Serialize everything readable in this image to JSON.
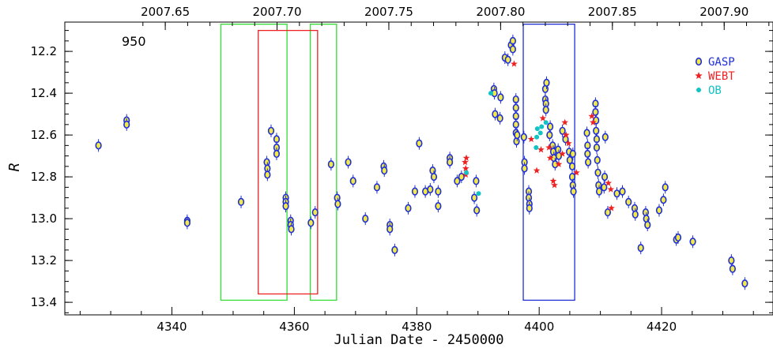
{
  "chart_data": {
    "type": "scatter",
    "annotation": "950",
    "xlabel": "Julian Date - 2450000",
    "ylabel": "R",
    "xlim": [
      4322.5,
      4438.2
    ],
    "ylim": [
      13.46,
      12.06
    ],
    "y_inverted": true,
    "x_ticks": [
      4340,
      4360,
      4380,
      4400,
      4420
    ],
    "x_tick_labels": [
      "4340",
      "4360",
      "4380",
      "4400",
      "4420"
    ],
    "y_ticks": [
      12.2,
      12.4,
      12.6,
      12.8,
      13.0,
      13.2,
      13.4
    ],
    "y_tick_labels": [
      "12.2",
      "12.4",
      "12.6",
      "12.8",
      "13.0",
      "13.2",
      "13.4"
    ],
    "top_axis": {
      "ticks": [
        2007.65,
        2007.7,
        2007.75,
        2007.8,
        2007.85,
        2007.9
      ],
      "tick_labels": [
        "2007.65",
        "2007.70",
        "2007.75",
        "2007.80",
        "2007.85",
        "2007.90"
      ],
      "jd_of_year_start": 4101.5,
      "days_per_year": 365.25
    },
    "legend": {
      "placement": "top-right",
      "entries": [
        {
          "label": "GASP",
          "color": "#1f2fd6",
          "marker": "circle-yellow"
        },
        {
          "label": "WEBT",
          "color": "#ee2222",
          "marker": "star"
        },
        {
          "label": "OB",
          "color": "#11c3c3",
          "marker": "dot"
        }
      ]
    },
    "boxes": [
      {
        "color": "#33dd33",
        "x": [
          4348.0,
          4358.8
        ],
        "y": [
          12.07,
          13.39
        ]
      },
      {
        "color": "#33dd33",
        "x": [
          4362.6,
          4366.9
        ],
        "y": [
          12.07,
          13.39
        ]
      },
      {
        "color": "#ee2222",
        "x": [
          4354.1,
          4363.8
        ],
        "y": [
          12.1,
          13.36
        ]
      },
      {
        "color": "#1f2fd6",
        "x": [
          4397.4,
          4405.8
        ],
        "y": [
          12.07,
          13.39
        ]
      }
    ],
    "series": [
      {
        "name": "GASP",
        "color": "#1f2fd6",
        "points": [
          [
            4328.0,
            12.65
          ],
          [
            4332.6,
            12.53
          ],
          [
            4332.6,
            12.55
          ],
          [
            4342.5,
            13.01
          ],
          [
            4342.5,
            13.02
          ],
          [
            4351.3,
            12.92
          ],
          [
            4355.5,
            12.73
          ],
          [
            4355.6,
            12.76
          ],
          [
            4355.6,
            12.79
          ],
          [
            4356.2,
            12.58
          ],
          [
            4357.1,
            12.62
          ],
          [
            4357.1,
            12.66
          ],
          [
            4357.1,
            12.69
          ],
          [
            4358.6,
            12.9
          ],
          [
            4358.6,
            12.92
          ],
          [
            4358.6,
            12.94
          ],
          [
            4359.4,
            13.01
          ],
          [
            4359.4,
            13.03
          ],
          [
            4359.5,
            13.05
          ],
          [
            4362.7,
            13.02
          ],
          [
            4363.4,
            12.97
          ],
          [
            4366.0,
            12.74
          ],
          [
            4367.0,
            12.9
          ],
          [
            4367.1,
            12.93
          ],
          [
            4368.8,
            12.73
          ],
          [
            4369.6,
            12.82
          ],
          [
            4371.6,
            13.0
          ],
          [
            4373.5,
            12.85
          ],
          [
            4374.6,
            12.75
          ],
          [
            4374.7,
            12.77
          ],
          [
            4375.6,
            13.03
          ],
          [
            4375.6,
            13.05
          ],
          [
            4376.4,
            13.15
          ],
          [
            4378.6,
            12.95
          ],
          [
            4379.7,
            12.87
          ],
          [
            4380.4,
            12.64
          ],
          [
            4381.4,
            12.87
          ],
          [
            4382.2,
            12.86
          ],
          [
            4382.6,
            12.77
          ],
          [
            4382.8,
            12.8
          ],
          [
            4383.5,
            12.94
          ],
          [
            4383.5,
            12.87
          ],
          [
            4385.4,
            12.71
          ],
          [
            4385.4,
            12.73
          ],
          [
            4386.6,
            12.82
          ],
          [
            4387.3,
            12.8
          ],
          [
            4389.4,
            12.9
          ],
          [
            4389.7,
            12.82
          ],
          [
            4389.8,
            12.96
          ],
          [
            4392.6,
            12.38
          ],
          [
            4392.7,
            12.4
          ],
          [
            4392.8,
            12.5
          ],
          [
            4393.6,
            12.52
          ],
          [
            4393.7,
            12.42
          ],
          [
            4394.4,
            12.23
          ],
          [
            4394.9,
            12.24
          ],
          [
            4395.4,
            12.17
          ],
          [
            4395.7,
            12.15
          ],
          [
            4395.7,
            12.19
          ],
          [
            4396.2,
            12.43
          ],
          [
            4396.2,
            12.47
          ],
          [
            4396.2,
            12.51
          ],
          [
            4396.2,
            12.55
          ],
          [
            4396.2,
            12.59
          ],
          [
            4396.3,
            12.63
          ],
          [
            4396.4,
            12.6
          ],
          [
            4397.5,
            12.61
          ],
          [
            4397.6,
            12.73
          ],
          [
            4397.6,
            12.76
          ],
          [
            4398.3,
            12.87
          ],
          [
            4398.3,
            12.9
          ],
          [
            4398.4,
            12.93
          ],
          [
            4398.4,
            12.95
          ],
          [
            4401.0,
            12.38
          ],
          [
            4401.0,
            12.43
          ],
          [
            4401.1,
            12.45
          ],
          [
            4401.1,
            12.48
          ],
          [
            4401.2,
            12.35
          ],
          [
            4401.7,
            12.6
          ],
          [
            4401.8,
            12.56
          ],
          [
            4402.2,
            12.65
          ],
          [
            4402.3,
            12.68
          ],
          [
            4402.4,
            12.71
          ],
          [
            4402.6,
            12.74
          ],
          [
            4403.1,
            12.67
          ],
          [
            4403.2,
            12.7
          ],
          [
            4403.8,
            12.58
          ],
          [
            4404.3,
            12.62
          ],
          [
            4404.9,
            12.68
          ],
          [
            4405.0,
            12.72
          ],
          [
            4405.4,
            12.75
          ],
          [
            4405.4,
            12.8
          ],
          [
            4405.5,
            12.84
          ],
          [
            4405.6,
            12.87
          ],
          [
            4405.5,
            12.69
          ],
          [
            4407.8,
            12.59
          ],
          [
            4407.9,
            12.65
          ],
          [
            4407.9,
            12.69
          ],
          [
            4408.0,
            12.73
          ],
          [
            4409.2,
            12.45
          ],
          [
            4409.2,
            12.49
          ],
          [
            4409.3,
            12.53
          ],
          [
            4409.3,
            12.58
          ],
          [
            4409.4,
            12.62
          ],
          [
            4409.4,
            12.66
          ],
          [
            4409.5,
            12.72
          ],
          [
            4409.6,
            12.78
          ],
          [
            4409.7,
            12.84
          ],
          [
            4409.8,
            12.87
          ],
          [
            4410.6,
            12.85
          ],
          [
            4410.7,
            12.8
          ],
          [
            4410.8,
            12.61
          ],
          [
            4411.2,
            12.97
          ],
          [
            4412.7,
            12.88
          ],
          [
            4413.6,
            12.87
          ],
          [
            4414.6,
            12.92
          ],
          [
            4415.6,
            12.95
          ],
          [
            4415.7,
            12.98
          ],
          [
            4416.6,
            13.14
          ],
          [
            4417.4,
            12.97
          ],
          [
            4417.5,
            13.0
          ],
          [
            4417.7,
            13.03
          ],
          [
            4419.6,
            12.96
          ],
          [
            4420.3,
            12.91
          ],
          [
            4420.6,
            12.85
          ],
          [
            4422.4,
            13.1
          ],
          [
            4422.7,
            13.09
          ],
          [
            4425.1,
            13.11
          ],
          [
            4431.4,
            13.2
          ],
          [
            4431.6,
            13.24
          ],
          [
            4433.6,
            13.31
          ]
        ]
      },
      {
        "name": "WEBT",
        "color": "#ee2222",
        "points": [
          [
            4387.9,
            12.73
          ],
          [
            4388.0,
            12.76
          ],
          [
            4388.0,
            12.79
          ],
          [
            4388.1,
            12.71
          ],
          [
            4395.9,
            12.26
          ],
          [
            4398.7,
            12.62
          ],
          [
            4399.6,
            12.77
          ],
          [
            4400.3,
            12.67
          ],
          [
            4400.6,
            12.52
          ],
          [
            4401.6,
            12.66
          ],
          [
            4401.8,
            12.71
          ],
          [
            4402.3,
            12.82
          ],
          [
            4402.5,
            12.84
          ],
          [
            4403.2,
            12.74
          ],
          [
            4403.8,
            12.69
          ],
          [
            4404.2,
            12.54
          ],
          [
            4404.4,
            12.6
          ],
          [
            4404.8,
            12.64
          ],
          [
            4406.1,
            12.78
          ],
          [
            4408.6,
            12.51
          ],
          [
            4408.8,
            12.54
          ],
          [
            4411.3,
            12.83
          ],
          [
            4411.7,
            12.86
          ],
          [
            4411.8,
            12.95
          ]
        ]
      },
      {
        "name": "OB",
        "color": "#11c3c3",
        "points": [
          [
            4388.1,
            12.78
          ],
          [
            4390.1,
            12.88
          ],
          [
            4392.1,
            12.4
          ],
          [
            4399.5,
            12.66
          ],
          [
            4399.6,
            12.61
          ],
          [
            4399.7,
            12.57
          ],
          [
            4400.2,
            12.59
          ],
          [
            4400.4,
            12.56
          ],
          [
            4401.1,
            12.54
          ]
        ]
      }
    ]
  }
}
